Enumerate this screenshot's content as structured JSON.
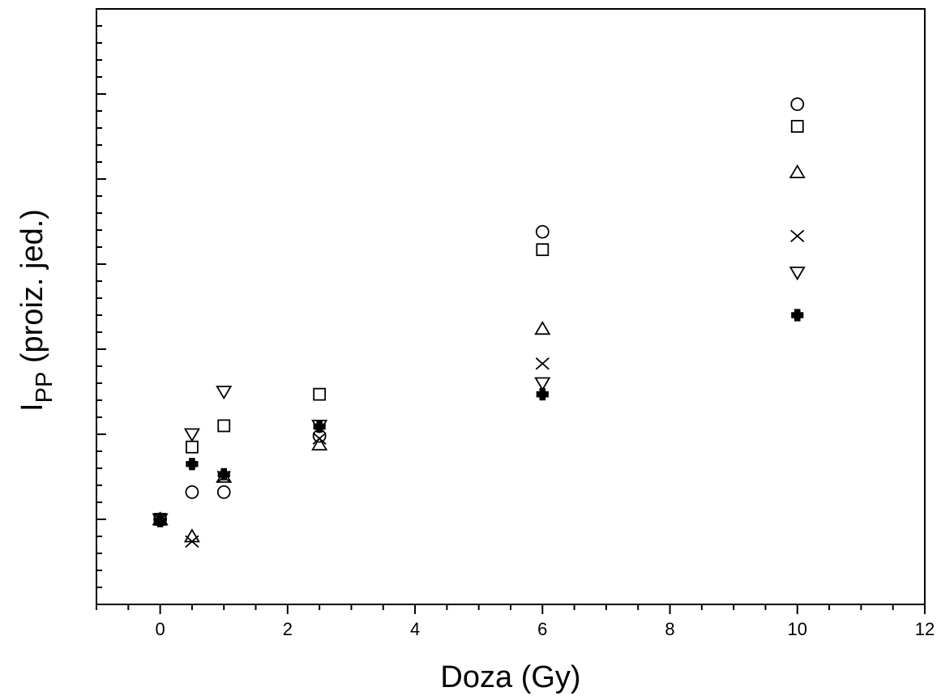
{
  "chart_data": {
    "type": "scatter",
    "title": "",
    "xlabel": "Doza (Gy)",
    "ylabel": {
      "main": "I",
      "subscript": "PP",
      "suffix": " (proiz. jed.)"
    },
    "xlim": [
      -1,
      12
    ],
    "ylim": [
      0,
      7
    ],
    "x_ticks": [
      0,
      2,
      4,
      6,
      8,
      10,
      12
    ],
    "y_tick_labels": false,
    "grid": false,
    "legend": "none",
    "series": [
      {
        "marker": "circle",
        "points": [
          [
            0,
            1.0
          ],
          [
            0.5,
            1.32
          ],
          [
            1,
            1.32
          ],
          [
            2.5,
            1.98
          ],
          [
            6,
            4.38
          ],
          [
            10,
            5.88
          ]
        ]
      },
      {
        "marker": "square",
        "points": [
          [
            0,
            1.0
          ],
          [
            0.5,
            1.85
          ],
          [
            1,
            2.1
          ],
          [
            2.5,
            2.47
          ],
          [
            6,
            4.17
          ],
          [
            10,
            5.62
          ]
        ]
      },
      {
        "marker": "triangle-up",
        "points": [
          [
            0,
            1.0
          ],
          [
            0.5,
            0.8
          ],
          [
            1,
            1.5
          ],
          [
            2.5,
            1.88
          ],
          [
            6,
            3.24
          ],
          [
            10,
            5.08
          ]
        ]
      },
      {
        "marker": "x",
        "points": [
          [
            0,
            1.0
          ],
          [
            0.5,
            0.74
          ],
          [
            1,
            1.5
          ],
          [
            2.5,
            1.95
          ],
          [
            6,
            2.83
          ],
          [
            10,
            4.33
          ]
        ]
      },
      {
        "marker": "triangle-down",
        "points": [
          [
            0,
            1.0
          ],
          [
            0.5,
            2.0
          ],
          [
            1,
            2.5
          ],
          [
            2.5,
            2.1
          ],
          [
            6,
            2.6
          ],
          [
            10,
            3.9
          ]
        ]
      },
      {
        "marker": "filled-cross",
        "points": [
          [
            0,
            0.98
          ],
          [
            0.5,
            1.65
          ],
          [
            1,
            1.53
          ],
          [
            2.5,
            2.09
          ],
          [
            6,
            2.47
          ],
          [
            10,
            3.4
          ]
        ]
      }
    ]
  }
}
